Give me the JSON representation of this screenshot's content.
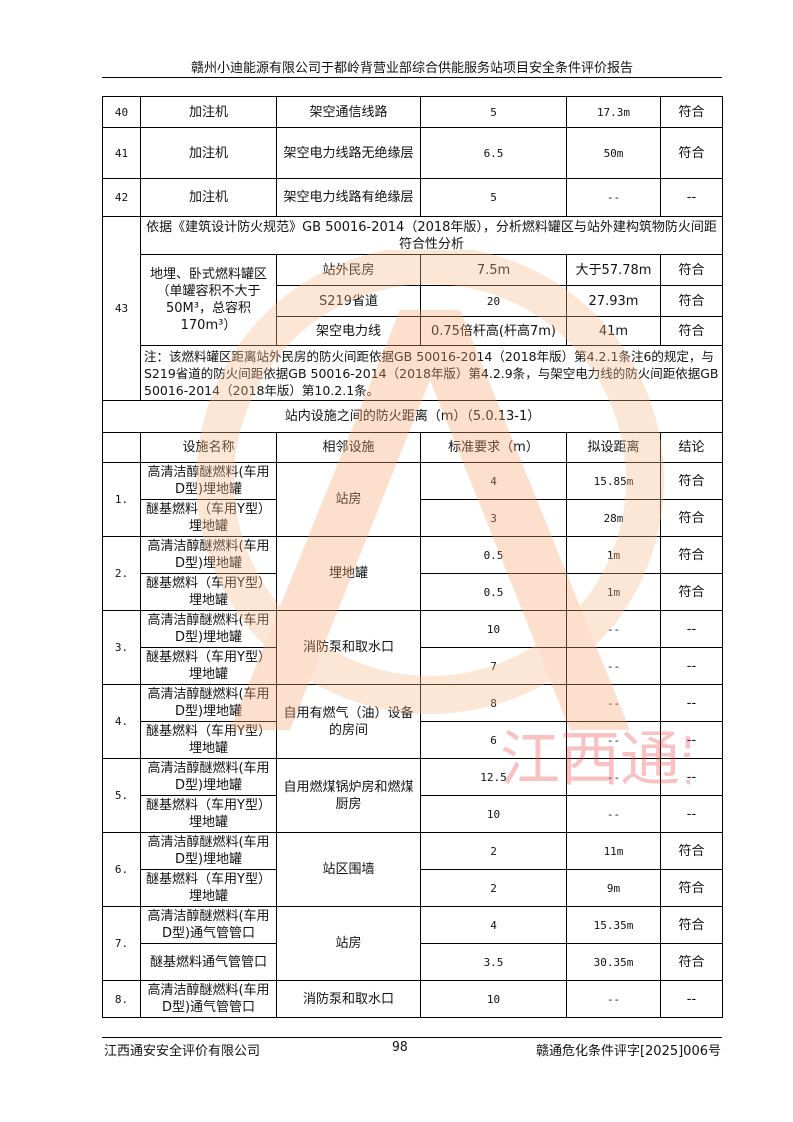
{
  "header": {
    "title": "赣州小迪能源有限公司于都岭背营业部综合供能服务站项目安全条件评价报告"
  },
  "upper_rows": [
    {
      "no": "40",
      "facility": "加注机",
      "target": "架空通信线路",
      "standard": "5",
      "distance": "17.3m",
      "result": "符合"
    },
    {
      "no": "41",
      "facility": "加注机",
      "target": "架空电力线路无绝缘层",
      "standard": "6.5",
      "distance": "50m",
      "result": "符合"
    },
    {
      "no": "42",
      "facility": "加注机",
      "target": "架空电力线路有绝缘层",
      "standard": "5",
      "distance": "--",
      "result": "--"
    }
  ],
  "row43": {
    "no": "43",
    "heading": "依据《建筑设计防火规范》GB 50016-2014（2018年版），分析燃料罐区与站外建构筑物防火间距符合性分析",
    "facility": "地埋、卧式燃料罐区（单罐容积不大于50M³，总容积170m³）",
    "rows": [
      {
        "target": "站外民房",
        "standard": "7.5m",
        "distance": "大于57.78m",
        "result": "符合"
      },
      {
        "target": "S219省道",
        "standard": "20",
        "distance": "27.93m",
        "result": "符合"
      },
      {
        "target": "架空电力线",
        "standard": "0.75倍杆高(杆高7m)",
        "distance": "41m",
        "result": "符合"
      }
    ],
    "note": "注：该燃料罐区距离站外民房的防火间距依据GB 50016-2014（2018年版）第4.2.1条注6的规定，与S219省道的防火间距依据GB 50016-2014（2018年版）第4.2.9条，与架空电力线的防火间距依据GB 50016-2014（2018年版）第10.2.1条。"
  },
  "section": {
    "title": "站内设施之间的防火距离（m）（5.0.13-1）",
    "columns": [
      "设施名称",
      "相邻设施",
      "标准要求（m）",
      "拟设距离",
      "结论"
    ]
  },
  "items": [
    {
      "no": "1.",
      "neighbor": "站房",
      "rows": [
        {
          "name": "高清洁醇醚燃料(车用D型)埋地罐",
          "standard": "4",
          "distance": "15.85m",
          "result": "符合"
        },
        {
          "name": "醚基燃料（车用Y型）埋地罐",
          "standard": "3",
          "distance": "28m",
          "result": "符合"
        }
      ]
    },
    {
      "no": "2.",
      "neighbor": "埋地罐",
      "rows": [
        {
          "name": "高清洁醇醚燃料(车用D型)埋地罐",
          "standard": "0.5",
          "distance": "1m",
          "result": "符合"
        },
        {
          "name": "醚基燃料（车用Y型）埋地罐",
          "standard": "0.5",
          "distance": "1m",
          "result": "符合"
        }
      ]
    },
    {
      "no": "3.",
      "neighbor": "消防泵和取水口",
      "rows": [
        {
          "name": "高清洁醇醚燃料(车用D型)埋地罐",
          "standard": "10",
          "distance": "--",
          "result": "--"
        },
        {
          "name": "醚基燃料（车用Y型）埋地罐",
          "standard": "7",
          "distance": "--",
          "result": "--"
        }
      ]
    },
    {
      "no": "4.",
      "neighbor": "自用有燃气（油）设备的房间",
      "rows": [
        {
          "name": "高清洁醇醚燃料(车用D型)埋地罐",
          "standard": "8",
          "distance": "--",
          "result": "--"
        },
        {
          "name": "醚基燃料（车用Y型）埋地罐",
          "standard": "6",
          "distance": "--",
          "result": "--"
        }
      ]
    },
    {
      "no": "5.",
      "neighbor": "自用燃煤锅炉房和燃煤厨房",
      "rows": [
        {
          "name": "高清洁醇醚燃料(车用D型)埋地罐",
          "standard": "12.5",
          "distance": "--",
          "result": "--"
        },
        {
          "name": "醚基燃料（车用Y型）埋地罐",
          "standard": "10",
          "distance": "--",
          "result": "--"
        }
      ]
    },
    {
      "no": "6.",
      "neighbor": "站区围墙",
      "rows": [
        {
          "name": "高清洁醇醚燃料(车用D型)埋地罐",
          "standard": "2",
          "distance": "11m",
          "result": "符合"
        },
        {
          "name": "醚基燃料（车用Y型）埋地罐",
          "standard": "2",
          "distance": "9m",
          "result": "符合"
        }
      ]
    },
    {
      "no": "7.",
      "neighbor": "站房",
      "rows": [
        {
          "name": "高清洁醇醚燃料(车用D型)通气管管口",
          "standard": "4",
          "distance": "15.35m",
          "result": "符合"
        },
        {
          "name": "醚基燃料通气管管口",
          "standard": "3.5",
          "distance": "30.35m",
          "result": "符合"
        }
      ]
    },
    {
      "no": "8.",
      "neighbor": "消防泵和取水口",
      "rows": [
        {
          "name": "高清洁醇醚燃料(车用D型)通气管管口",
          "standard": "10",
          "distance": "--",
          "result": "--"
        }
      ]
    }
  ],
  "footer": {
    "company": "江西通安安全评价有限公司",
    "page": "98",
    "doc_no": "赣通危化条件评字[2025]006号"
  },
  "watermark": {
    "text": "江西通安",
    "colors": {
      "ring": "#f4a46a",
      "text": "#e83a3a",
      "letters": "#3ec8f0"
    }
  }
}
